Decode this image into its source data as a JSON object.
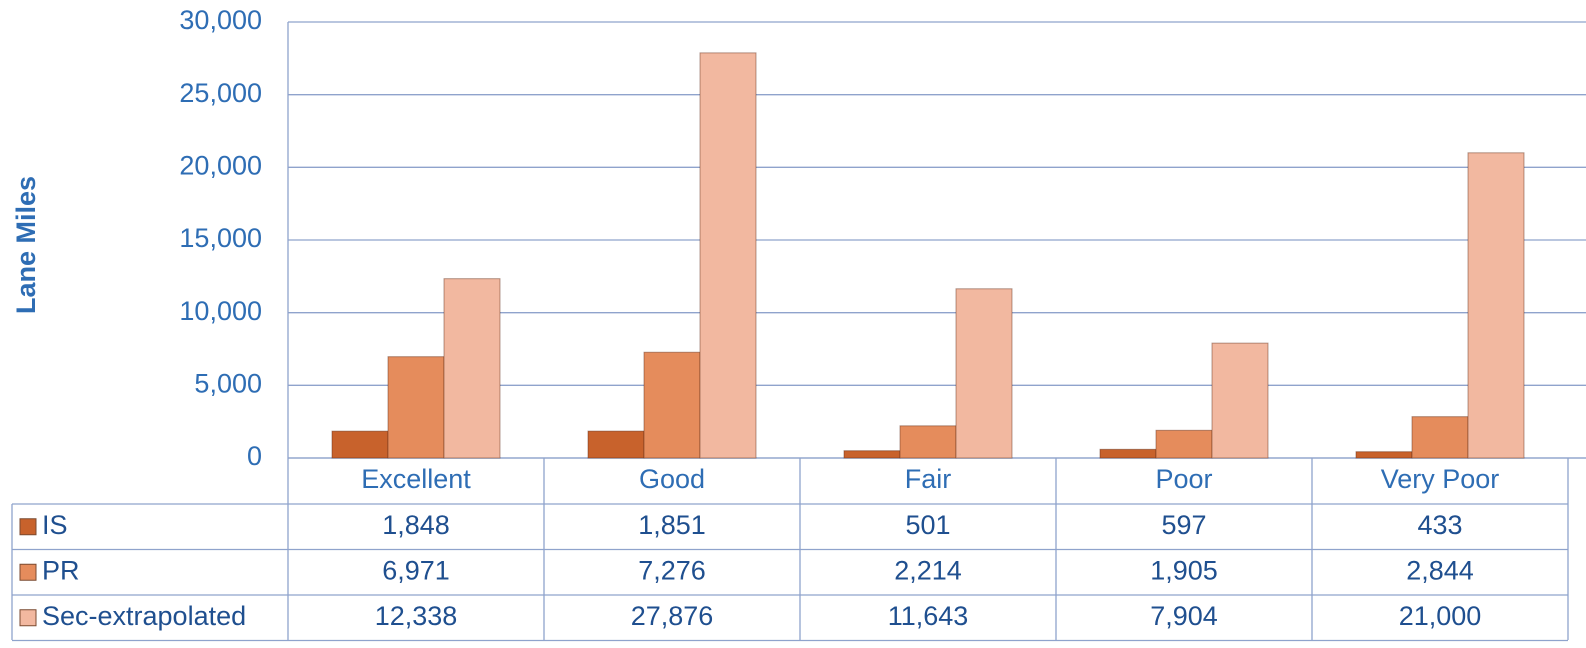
{
  "chart_data": {
    "type": "bar",
    "y_label": "Lane Miles",
    "categories": [
      "Excellent",
      "Good",
      "Fair",
      "Poor",
      "Very Poor"
    ],
    "series": [
      {
        "name": "IS",
        "color": "#c8622c",
        "values": [
          1848,
          1851,
          501,
          597,
          433
        ],
        "value_labels": [
          "1,848",
          "1,851",
          "501",
          "597",
          "433"
        ]
      },
      {
        "name": "PR",
        "color": "#e58c5c",
        "values": [
          6971,
          7276,
          2214,
          1905,
          2844
        ],
        "value_labels": [
          "6,971",
          "7,276",
          "2,214",
          "1,905",
          "2,844"
        ]
      },
      {
        "name": "Sec-extrapolated",
        "color": "#f2b8a0",
        "values": [
          12338,
          27876,
          11643,
          7904,
          21000
        ],
        "value_labels": [
          "12,338",
          "27,876",
          "11,643",
          "7,904",
          "21,000"
        ]
      }
    ],
    "ylim": [
      0,
      30000
    ],
    "yticks": [
      0,
      {
        "value": 5000,
        "label": "5,000"
      },
      {
        "value": 10000,
        "label": "10,000"
      },
      {
        "value": 15000,
        "label": "15,000"
      },
      {
        "value": 20000,
        "label": "20,000"
      },
      {
        "value": 25000,
        "label": "25,000"
      },
      {
        "value": 30000,
        "label": "30,000"
      }
    ],
    "grid": true
  }
}
